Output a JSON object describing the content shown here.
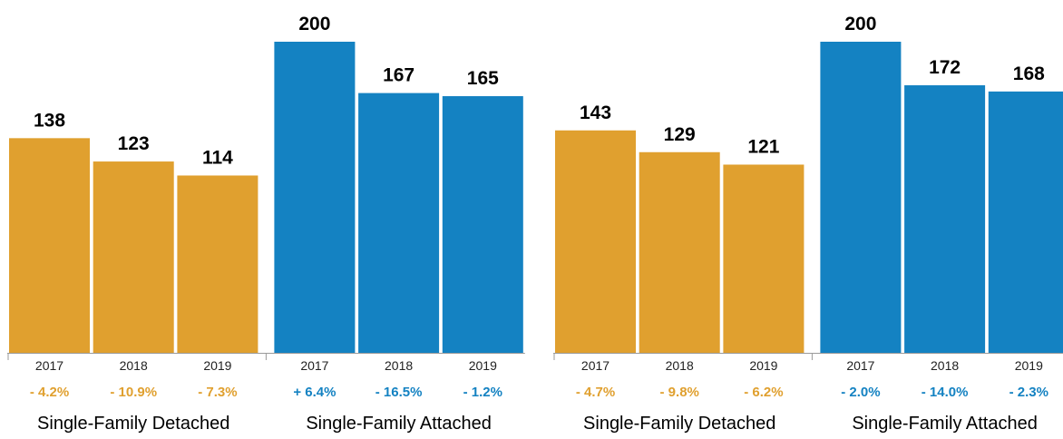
{
  "colors": {
    "detached": "#E0A02F",
    "attached": "#1482C2",
    "axis": "#9a9a9a",
    "text": "#000000",
    "tick_text": "#222222"
  },
  "chart_data": [
    {
      "type": "bar",
      "categories": [
        "2017",
        "2018",
        "2019"
      ],
      "ylim": [
        0,
        200
      ],
      "grid": false,
      "groups": [
        {
          "name": "Single-Family Detached",
          "color_key": "detached",
          "values": [
            138,
            123,
            114
          ],
          "changes": [
            "- 4.2%",
            "- 10.9%",
            "- 7.3%"
          ]
        },
        {
          "name": "Single-Family Attached",
          "color_key": "attached",
          "values": [
            200,
            167,
            165
          ],
          "changes": [
            "+ 6.4%",
            "- 16.5%",
            "- 1.2%"
          ]
        }
      ]
    },
    {
      "type": "bar",
      "categories": [
        "2017",
        "2018",
        "2019"
      ],
      "ylim": [
        0,
        200
      ],
      "grid": false,
      "groups": [
        {
          "name": "Single-Family Detached",
          "color_key": "detached",
          "values": [
            143,
            129,
            121
          ],
          "changes": [
            "- 4.7%",
            "- 9.8%",
            "- 6.2%"
          ]
        },
        {
          "name": "Single-Family Attached",
          "color_key": "attached",
          "values": [
            200,
            172,
            168
          ],
          "changes": [
            "- 2.0%",
            "- 14.0%",
            "- 2.3%"
          ]
        }
      ]
    }
  ]
}
